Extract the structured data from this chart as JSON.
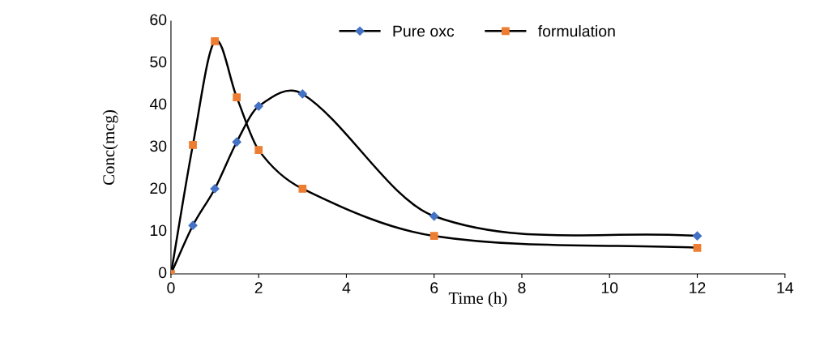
{
  "chart_data": {
    "type": "line",
    "xlabel": "Time (h)",
    "ylabel": "Conc(mcg)",
    "xlim": [
      0,
      14
    ],
    "xticks": [
      0,
      2,
      4,
      6,
      8,
      10,
      12,
      14
    ],
    "ylim": [
      0,
      60
    ],
    "yticks": [
      0,
      10,
      20,
      30,
      40,
      50,
      60
    ],
    "grid": false,
    "legend": "top",
    "series": [
      {
        "name": "Pure oxc",
        "color": "#000000",
        "colors": [
          "#4472c4",
          "#4472c4",
          "#4472c4",
          "#4472c4",
          "#4472c4",
          "#4472c4",
          "#4472c4",
          "#4472c4"
        ],
        "marker": "diamond",
        "x": [
          0,
          0.5,
          1,
          1.5,
          2,
          3,
          6,
          12
        ],
        "values": [
          0,
          11.5,
          20.2,
          31.3,
          39.8,
          42.7,
          13.7,
          9.0
        ]
      },
      {
        "name": "formulation",
        "color": "#000000",
        "colors": [
          "#ed7d31",
          "#ed7d31",
          "#ed7d31",
          "#ed7d31",
          "#ed7d31",
          "#ed7d31",
          "#ed7d31",
          "#ed7d31"
        ],
        "marker": "square",
        "x": [
          0,
          0.5,
          1,
          1.5,
          2,
          3,
          6,
          12
        ],
        "values": [
          0,
          30.6,
          55.2,
          41.9,
          29.4,
          20.2,
          9.0,
          6.2
        ]
      }
    ]
  }
}
